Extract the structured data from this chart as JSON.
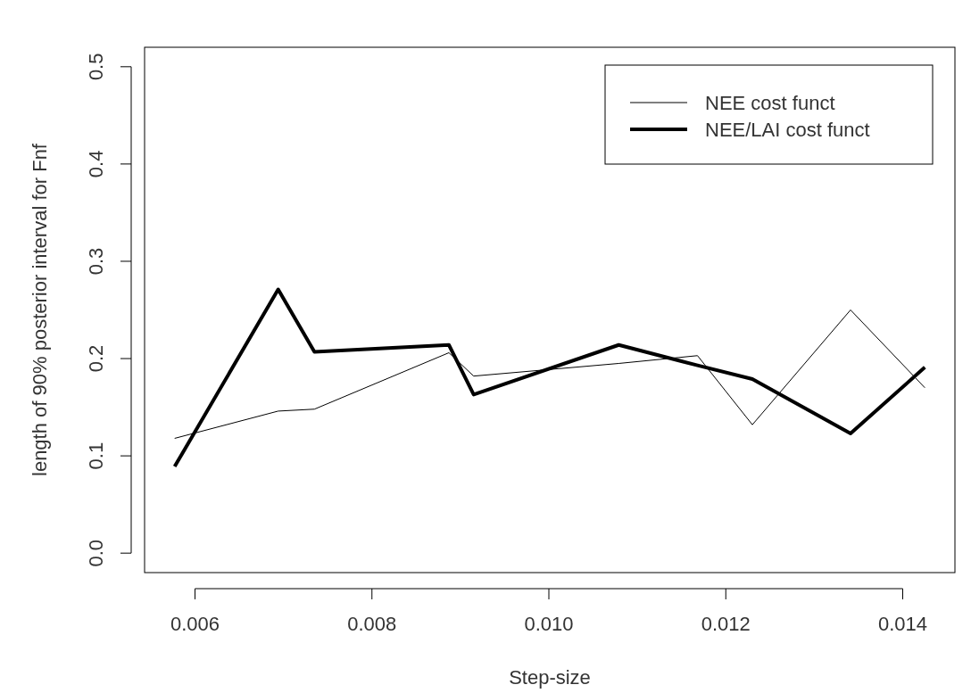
{
  "chart_data": {
    "type": "line",
    "xlabel": "Step-size",
    "ylabel": "length of 90% posterior interval for Fnf",
    "x": [
      0.00577,
      0.00694,
      0.00735,
      0.00887,
      0.00915,
      0.01079,
      0.01168,
      0.0123,
      0.01341,
      0.01425
    ],
    "xlim": [
      0.00543,
      0.01459
    ],
    "xticks": [
      {
        "value": 0.006,
        "label": "0.006"
      },
      {
        "value": 0.008,
        "label": "0.008"
      },
      {
        "value": 0.01,
        "label": "0.010"
      },
      {
        "value": 0.012,
        "label": "0.012"
      },
      {
        "value": 0.014,
        "label": "0.014"
      }
    ],
    "ylim": [
      -0.02,
      0.52
    ],
    "yticks": [
      {
        "value": 0,
        "label": "0.0"
      },
      {
        "value": 0.1,
        "label": "0.1"
      },
      {
        "value": 0.2,
        "label": "0.2"
      },
      {
        "value": 0.3,
        "label": "0.3"
      },
      {
        "value": 0.4,
        "label": "0.4"
      },
      {
        "value": 0.5,
        "label": "0.5"
      }
    ],
    "series": [
      {
        "name": "NEE cost funct",
        "color": "#000000",
        "values": [
          0.118,
          0.146,
          0.148,
          0.206,
          0.182,
          0.195,
          0.203,
          0.132,
          0.25,
          0.17
        ]
      },
      {
        "name": "NEE/LAI cost funct",
        "color": "#000000",
        "values": [
          0.089,
          0.271,
          0.207,
          0.214,
          0.163,
          0.214,
          0.193,
          0.179,
          0.123,
          0.191
        ]
      }
    ],
    "legend": "top right",
    "grid": false,
    "marker": "none",
    "line_style": "solid"
  }
}
